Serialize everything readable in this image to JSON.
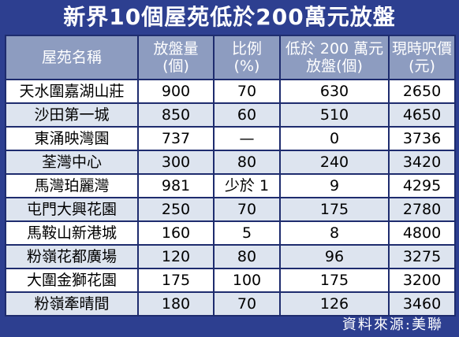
{
  "title": "新界10個屋苑低於200萬元放盤",
  "headers": {
    "name": "屋苑名稱",
    "listings_1": "放盤量",
    "listings_2": "(個)",
    "ratio_1": "比例",
    "ratio_2": "(%)",
    "below_1": "低於 200 萬元",
    "below_2": "放盤(個)",
    "price_1": "現時呎價",
    "price_2": "(元)"
  },
  "rows": [
    {
      "name": "天水圍嘉湖山莊",
      "listings": "900",
      "ratio": "70",
      "below": "630",
      "price": "2650"
    },
    {
      "name": "沙田第一城",
      "listings": "850",
      "ratio": "60",
      "below": "510",
      "price": "4650"
    },
    {
      "name": "東涌映灣園",
      "listings": "737",
      "ratio": "—",
      "below": "0",
      "price": "3736"
    },
    {
      "name": "荃灣中心",
      "listings": "300",
      "ratio": "80",
      "below": "240",
      "price": "3420"
    },
    {
      "name": "馬灣珀麗灣",
      "listings": "981",
      "ratio": "少於 1",
      "below": "9",
      "price": "4295"
    },
    {
      "name": "屯門大興花園",
      "listings": "250",
      "ratio": "70",
      "below": "175",
      "price": "2780"
    },
    {
      "name": "馬鞍山新港城",
      "listings": "160",
      "ratio": "5",
      "below": "8",
      "price": "4800"
    },
    {
      "name": "粉嶺花都廣場",
      "listings": "120",
      "ratio": "80",
      "below": "96",
      "price": "3275"
    },
    {
      "name": "大圍金獅花園",
      "listings": "175",
      "ratio": "100",
      "below": "175",
      "price": "3200"
    },
    {
      "name": "粉嶺牽晴間",
      "listings": "180",
      "ratio": "70",
      "below": "126",
      "price": "3460"
    }
  ],
  "source": "資料來源:美聯"
}
